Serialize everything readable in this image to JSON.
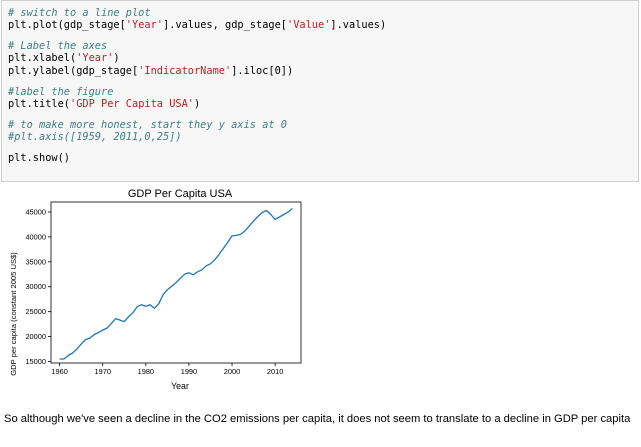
{
  "code_cell": {
    "lines": [
      {
        "segments": [
          {
            "text": "# switch to a line plot",
            "kind": "comment"
          }
        ]
      },
      {
        "segments": [
          {
            "text": "plt.plot(gdp_stage[",
            "kind": "code"
          },
          {
            "text": "'Year'",
            "kind": "string"
          },
          {
            "text": "].values, gdp_stage[",
            "kind": "code"
          },
          {
            "text": "'Value'",
            "kind": "string"
          },
          {
            "text": "].values)",
            "kind": "code"
          }
        ]
      },
      {
        "segments": [],
        "blank": true
      },
      {
        "segments": [
          {
            "text": "# Label the axes",
            "kind": "comment"
          }
        ]
      },
      {
        "segments": [
          {
            "text": "plt.xlabel(",
            "kind": "code"
          },
          {
            "text": "'Year'",
            "kind": "string"
          },
          {
            "text": ")",
            "kind": "code"
          }
        ]
      },
      {
        "segments": [
          {
            "text": "plt.ylabel(gdp_stage[",
            "kind": "code"
          },
          {
            "text": "'IndicatorName'",
            "kind": "string"
          },
          {
            "text": "].iloc[0])",
            "kind": "code"
          }
        ]
      },
      {
        "segments": [],
        "blank": true
      },
      {
        "segments": [
          {
            "text": "#label the figure",
            "kind": "comment"
          }
        ]
      },
      {
        "segments": [
          {
            "text": "plt.title(",
            "kind": "code"
          },
          {
            "text": "'GDP Per Capita USA'",
            "kind": "string"
          },
          {
            "text": ")",
            "kind": "code"
          }
        ]
      },
      {
        "segments": [],
        "blank": true
      },
      {
        "segments": [
          {
            "text": "# to make more honest, start they y axis at 0",
            "kind": "comment"
          }
        ]
      },
      {
        "segments": [
          {
            "text": "#plt.axis([1959, 2011,0,25])",
            "kind": "comment"
          }
        ]
      },
      {
        "segments": [],
        "blank": true
      },
      {
        "segments": [
          {
            "text": "plt.show()",
            "kind": "code"
          }
        ]
      }
    ]
  },
  "chart_data": {
    "type": "line",
    "title": "GDP Per Capita USA",
    "xlabel": "Year",
    "ylabel": "GDP per capita (constant 2005 US$)",
    "xlim": [
      1958,
      2016
    ],
    "ylim": [
      14700,
      47000
    ],
    "xticks": [
      1960,
      1970,
      1980,
      1990,
      2000,
      2010
    ],
    "yticks": [
      15000,
      20000,
      25000,
      30000,
      35000,
      40000,
      45000
    ],
    "grid": false,
    "line_color": "#1f77b4",
    "series": [
      {
        "x": [
          1960,
          1961,
          1962,
          1963,
          1964,
          1965,
          1966,
          1967,
          1968,
          1969,
          1970,
          1971,
          1972,
          1973,
          1974,
          1975,
          1976,
          1977,
          1978,
          1979,
          1980,
          1981,
          1982,
          1983,
          1984,
          1985,
          1986,
          1987,
          1988,
          1989,
          1990,
          1991,
          1992,
          1993,
          1994,
          1995,
          1996,
          1997,
          1998,
          1999,
          2000,
          2001,
          2002,
          2003,
          2004,
          2005,
          2006,
          2007,
          2008,
          2009,
          2010,
          2011,
          2012,
          2013,
          2014
        ],
        "y": [
          15500,
          15500,
          16200,
          16700,
          17500,
          18500,
          19400,
          19700,
          20400,
          20800,
          21300,
          21700,
          22600,
          23600,
          23300,
          23000,
          24000,
          24800,
          26000,
          26400,
          26100,
          26400,
          25700,
          26600,
          28400,
          29400,
          30100,
          30800,
          31700,
          32500,
          32800,
          32400,
          33000,
          33400,
          34200,
          34600,
          35400,
          36500,
          37700,
          38900,
          40200,
          40300,
          40500,
          41200,
          42200,
          43200,
          44100,
          44900,
          45300,
          44500,
          43500,
          44000,
          44500,
          45000,
          45700
        ]
      }
    ]
  },
  "prose": {
    "text": "So although we've seen a decline in the CO2 emissions per capita, it does not seem to translate to a decline in GDP per capita"
  }
}
